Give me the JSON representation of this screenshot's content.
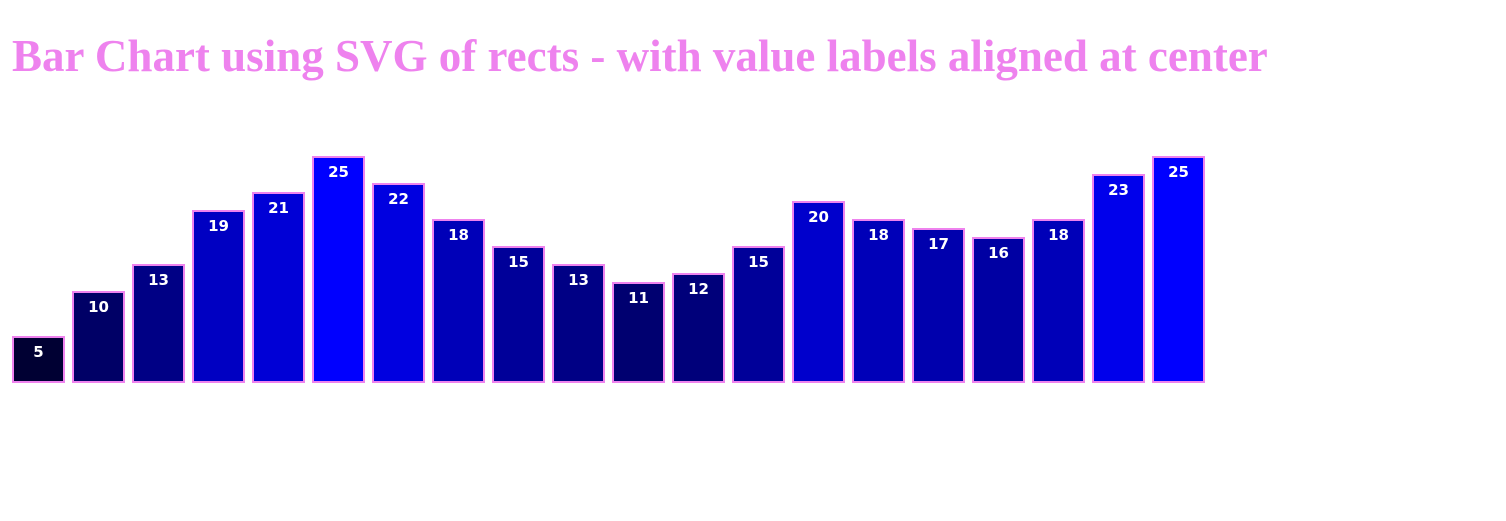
{
  "title": "Bar Chart using SVG of rects - with value labels aligned at center",
  "colors": {
    "title": "#ee82ee",
    "bar_stroke": "#ee82ee",
    "label": "#ffffff",
    "bar_low": "#000033",
    "bar_high": "#0000ff"
  },
  "chart_data": {
    "type": "bar",
    "title": "Bar Chart using SVG of rects - with value labels aligned at center",
    "xlabel": "",
    "ylabel": "",
    "values": [
      5,
      10,
      13,
      19,
      21,
      25,
      22,
      18,
      15,
      13,
      11,
      12,
      15,
      20,
      18,
      17,
      16,
      18,
      23,
      25
    ],
    "ylim": [
      0,
      25
    ],
    "grid": false,
    "value_labels": "inside-top, centered"
  }
}
